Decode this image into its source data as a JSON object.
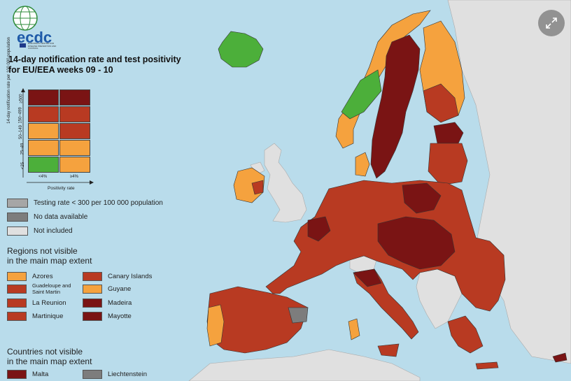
{
  "header": {
    "logo_text": "ecdc",
    "logo_subtext": "EUROPEAN CENTRE FOR DISEASE PREVENTION AND CONTROL",
    "title_line1": "14-day notification rate and test positivity",
    "title_line2": "for EU/EEA weeks 09 - 10"
  },
  "matrix": {
    "y_axis_label": "14-day notification rate per 100 000 population",
    "x_axis_label": "Positivity rate",
    "y_ticks": [
      "≥500",
      "150–499",
      "50–149",
      "25–49",
      "<25"
    ],
    "x_ticks": [
      "<4%",
      "≥4%"
    ],
    "colors": [
      [
        "#7a1414",
        "#7a1414"
      ],
      [
        "#b83a22",
        "#b83a22"
      ],
      [
        "#f5a23e",
        "#b83a22"
      ],
      [
        "#f5a23e",
        "#f5a23e"
      ],
      [
        "#4caf3a",
        "#f5a23e"
      ]
    ]
  },
  "status_legend": [
    {
      "label": "Testing rate < 300 per 100 000 population",
      "color": "#a6a6a6"
    },
    {
      "label": "No data available",
      "color": "#7d7d7d"
    },
    {
      "label": "Not included",
      "color": "#e0e0e0"
    }
  ],
  "regions_section": {
    "title_line1": "Regions not visible",
    "title_line2": "in the main map extent",
    "items": [
      {
        "label": "Azores",
        "color": "#f5a23e"
      },
      {
        "label": "Canary Islands",
        "color": "#b83a22"
      },
      {
        "label": "Guadeloupe and Saint Martin",
        "color": "#b83a22"
      },
      {
        "label": "Guyane",
        "color": "#f5a23e"
      },
      {
        "label": "La Reunion",
        "color": "#b83a22"
      },
      {
        "label": "Madeira",
        "color": "#7a1414"
      },
      {
        "label": "Martinique",
        "color": "#b83a22"
      },
      {
        "label": "Mayotte",
        "color": "#7a1414"
      }
    ]
  },
  "countries_section": {
    "title_line1": "Countries not visible",
    "title_line2": "in the main map extent",
    "items": [
      {
        "label": "Malta",
        "color": "#7a1414"
      },
      {
        "label": "Liechtenstein",
        "color": "#7d7d7d"
      }
    ]
  },
  "map_colors": {
    "sea": "#b9dceb",
    "not_included": "#e0e0e0",
    "dark_red": "#7a1414",
    "red": "#b83a22",
    "orange": "#f5a23e",
    "green": "#4caf3a",
    "grey": "#7d7d7d"
  },
  "expand_button": {
    "icon": "expand-arrows-icon"
  }
}
